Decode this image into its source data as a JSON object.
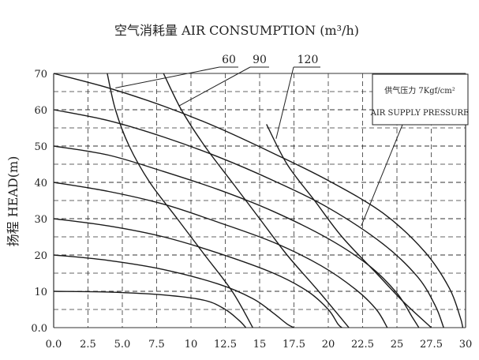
{
  "chart_data": {
    "type": "line",
    "title": "空气消耗量 AIR CONSUMPTION (m³/h)",
    "xlabel": "",
    "ylabel": "扬程 HEAD(m)",
    "xlim": [
      0,
      30
    ],
    "ylim": [
      0,
      70
    ],
    "x_ticks": [
      "0.0",
      "2.5",
      "5.0",
      "7.5",
      "10",
      "12.5",
      "15",
      "17.5",
      "20",
      "22.5",
      "25",
      "27.5",
      "30"
    ],
    "y_ticks": [
      "0.0",
      "10",
      "20",
      "30",
      "40",
      "50",
      "60",
      "70"
    ],
    "grid": true,
    "legend_box": {
      "line1": "供气压力 7Kgf/cm²",
      "line2": "AIR SUPPLY PRESSURE"
    },
    "consumption_labels": [
      "60",
      "90",
      "120"
    ],
    "series": [
      {
        "values": [
          [
            0,
            10
          ],
          [
            4,
            9.8
          ],
          [
            8,
            9
          ],
          [
            11,
            7.5
          ],
          [
            12.5,
            5
          ],
          [
            13.5,
            2
          ],
          [
            14,
            0
          ]
        ]
      },
      {
        "values": [
          [
            0,
            20
          ],
          [
            4,
            18.5
          ],
          [
            8,
            16
          ],
          [
            12,
            12
          ],
          [
            14.5,
            8
          ],
          [
            16,
            4
          ],
          [
            17,
            1
          ],
          [
            17.5,
            0
          ]
        ]
      },
      {
        "values": [
          [
            0,
            30
          ],
          [
            4,
            28
          ],
          [
            8,
            25
          ],
          [
            12,
            20.5
          ],
          [
            16,
            15
          ],
          [
            18.5,
            10
          ],
          [
            20,
            5
          ],
          [
            20.7,
            1
          ],
          [
            21,
            0
          ]
        ]
      },
      {
        "values": [
          [
            0,
            40
          ],
          [
            4,
            37.5
          ],
          [
            8,
            34
          ],
          [
            12,
            29
          ],
          [
            16,
            23.5
          ],
          [
            19.5,
            17
          ],
          [
            22,
            10.5
          ],
          [
            23.5,
            5
          ],
          [
            24.3,
            0
          ]
        ]
      },
      {
        "values": [
          [
            0,
            50
          ],
          [
            4,
            47.5
          ],
          [
            8,
            43
          ],
          [
            12,
            38
          ],
          [
            16,
            32
          ],
          [
            20,
            24.5
          ],
          [
            23,
            17
          ],
          [
            25,
            9.5
          ],
          [
            26.1,
            3
          ],
          [
            26.6,
            0
          ]
        ]
      },
      {
        "values": [
          [
            0,
            60
          ],
          [
            4,
            57
          ],
          [
            8,
            52.5
          ],
          [
            12,
            47
          ],
          [
            16,
            40.5
          ],
          [
            20,
            33
          ],
          [
            24,
            23
          ],
          [
            26.5,
            14
          ],
          [
            27.8,
            6
          ],
          [
            28.4,
            0
          ]
        ]
      },
      {
        "values": [
          [
            0,
            70
          ],
          [
            4,
            66
          ],
          [
            8,
            61
          ],
          [
            12,
            55
          ],
          [
            16,
            48
          ],
          [
            20,
            40.5
          ],
          [
            24,
            31.5
          ],
          [
            27,
            21
          ],
          [
            28.8,
            11
          ],
          [
            29.6,
            3
          ],
          [
            29.8,
            0
          ]
        ]
      }
    ],
    "consumption_curves": [
      {
        "name": "60",
        "values": [
          [
            3.9,
            70
          ],
          [
            4.5,
            60
          ],
          [
            5.5,
            50
          ],
          [
            7,
            40
          ],
          [
            9,
            30
          ],
          [
            11,
            20
          ],
          [
            13,
            10
          ],
          [
            14.5,
            0
          ]
        ]
      },
      {
        "name": "90",
        "values": [
          [
            8,
            70
          ],
          [
            9.3,
            60
          ],
          [
            11,
            50
          ],
          [
            13,
            40
          ],
          [
            15,
            30
          ],
          [
            17,
            20
          ],
          [
            19.3,
            10
          ],
          [
            21.5,
            0
          ]
        ]
      },
      {
        "name": "120",
        "values": [
          [
            15.5,
            56
          ],
          [
            17,
            45
          ],
          [
            19,
            35
          ],
          [
            21,
            25
          ],
          [
            23.5,
            15
          ],
          [
            25.5,
            7
          ],
          [
            27.5,
            0
          ]
        ]
      }
    ]
  }
}
